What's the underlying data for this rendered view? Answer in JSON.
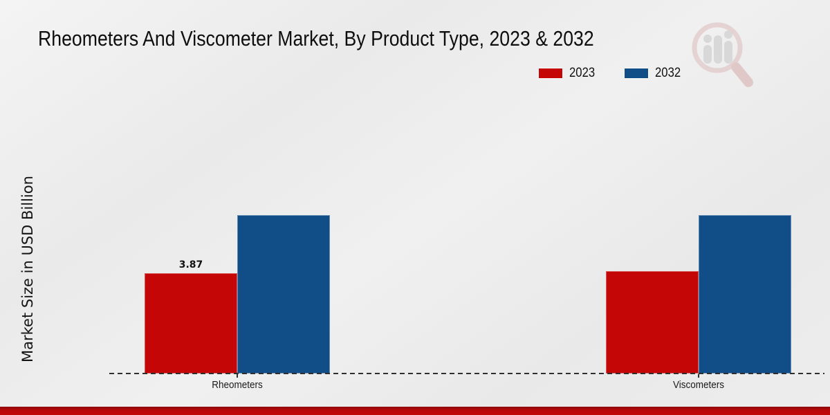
{
  "title": "Rheometers And Viscometer Market, By Product Type, 2023 & 2032",
  "ylabel": "Market Size in USD Billion",
  "legend": {
    "items": [
      {
        "label": "2023",
        "color": "#c40606"
      },
      {
        "label": "2032",
        "color": "#114e87"
      }
    ]
  },
  "chart_data": {
    "type": "bar",
    "title": "Rheometers And Viscometer Market, By Product Type, 2023 & 2032",
    "categories": [
      "Rheometers",
      "Viscometers"
    ],
    "series": [
      {
        "name": "2023",
        "color": "#c40606",
        "values": [
          3.87,
          3.95
        ]
      },
      {
        "name": "2032",
        "color": "#114e87",
        "values": [
          6.11,
          6.11
        ]
      }
    ],
    "data_labels": [
      {
        "series_index": 0,
        "category_index": 0,
        "text": "3.87"
      }
    ],
    "xlabel": "",
    "ylabel": "Market Size in USD Billion",
    "ylim": [
      0,
      7.2
    ],
    "grid": false,
    "legend_position": "top-right",
    "axis_style": "dashed-baseline-only",
    "note_estimated": "only 3.87 labeled on chart; other values estimated from bar heights"
  },
  "colors": {
    "background": "#ededed",
    "accent_red": "#c40606",
    "accent_blue": "#114e87",
    "baseline": "#2f2f2f",
    "bottom_strip": "#b90808"
  },
  "watermark": {
    "name": "magnifier-bar-chart-logo"
  }
}
